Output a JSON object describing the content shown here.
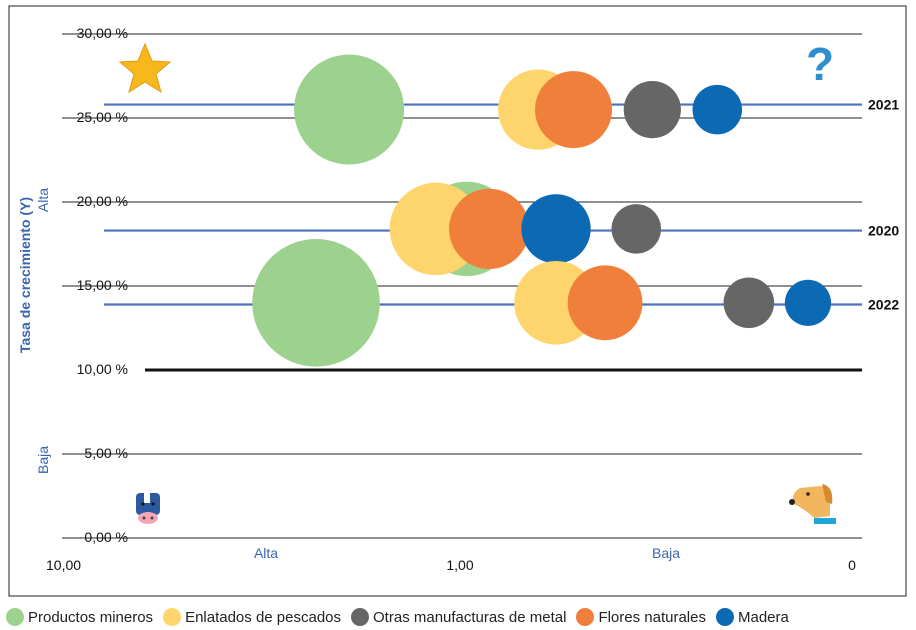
{
  "chart_data": {
    "type": "bubble",
    "ylabel": "Tasa de crecimiento (Y)",
    "y_high_label": "Alta",
    "y_low_label": "Baja",
    "x_high_label": "Alta",
    "x_low_label": "Baja",
    "ylim": [
      0,
      30
    ],
    "y_ticks": [
      "0,00 %",
      "5,00 %",
      "10,00 %",
      "15,00 %",
      "20,00 %",
      "25,00 %",
      "30,00 %"
    ],
    "x_ticks": [
      "10,00",
      "1,00",
      "0"
    ],
    "threshold_y": 10,
    "quadrant_icons": [
      "star-icon",
      "question-icon",
      "cow-icon",
      "dog-icon"
    ],
    "question_mark": "?",
    "years": [
      {
        "label": "2021",
        "y": 25.8
      },
      {
        "label": "2020",
        "y": 18.3
      },
      {
        "label": "2022",
        "y": 13.9
      }
    ],
    "series": [
      {
        "name": "Productos mineros",
        "color": "#9dd18e"
      },
      {
        "name": "Enlatados de pescados",
        "color": "#fdd56c"
      },
      {
        "name": "Otras manufacturas de metal",
        "color": "#666666"
      },
      {
        "name": "Flores naturales",
        "color": "#f07f3c"
      },
      {
        "name": "Madera",
        "color": "#0b6ab3"
      }
    ],
    "bubbles": [
      {
        "series": 0,
        "year": "2021",
        "x": 1.9,
        "y": 25.5,
        "size": 1.0
      },
      {
        "series": 1,
        "year": "2021",
        "x": 0.55,
        "y": 25.5,
        "size": 0.73
      },
      {
        "series": 3,
        "year": "2021",
        "x": 0.42,
        "y": 25.5,
        "size": 0.7
      },
      {
        "series": 2,
        "year": "2021",
        "x": 0.23,
        "y": 25.5,
        "size": 0.52
      },
      {
        "series": 4,
        "year": "2021",
        "x": 0.14,
        "y": 25.5,
        "size": 0.45
      },
      {
        "series": 0,
        "year": "2020",
        "x": 0.95,
        "y": 18.4,
        "size": 0.86
      },
      {
        "series": 1,
        "year": "2020",
        "x": 1.15,
        "y": 18.4,
        "size": 0.84
      },
      {
        "series": 3,
        "year": "2020",
        "x": 0.8,
        "y": 18.4,
        "size": 0.73
      },
      {
        "series": 4,
        "year": "2020",
        "x": 0.48,
        "y": 18.4,
        "size": 0.63
      },
      {
        "series": 2,
        "year": "2020",
        "x": 0.26,
        "y": 18.4,
        "size": 0.45
      },
      {
        "series": 0,
        "year": "2022",
        "x": 2.3,
        "y": 14.0,
        "size": 1.16
      },
      {
        "series": 1,
        "year": "2022",
        "x": 0.48,
        "y": 14.0,
        "size": 0.76
      },
      {
        "series": 3,
        "year": "2022",
        "x": 0.33,
        "y": 14.0,
        "size": 0.68
      },
      {
        "series": 2,
        "year": "2022",
        "x": 0.11,
        "y": 14.0,
        "size": 0.46
      },
      {
        "series": 4,
        "year": "2022",
        "x": 0.07,
        "y": 14.0,
        "size": 0.42
      }
    ]
  }
}
